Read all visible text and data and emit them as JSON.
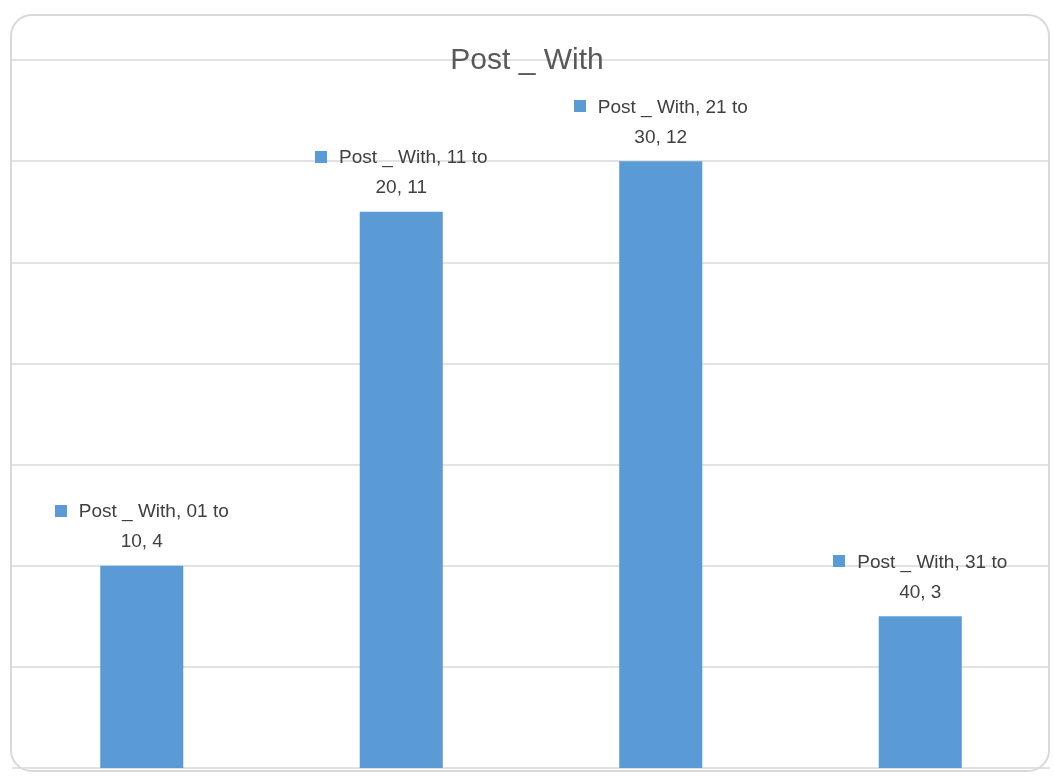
{
  "chart_data": {
    "type": "bar",
    "title": "Post _ With",
    "categories": [
      null,
      null,
      null,
      null
    ],
    "series": [
      {
        "color": "#5b9bd5",
        "values": [
          4,
          11,
          12,
          3
        ],
        "value_labels": [
          "Post _ With, 01 to 10, 4",
          "Post _ With, 11 to 20, 11",
          "Post _ With, 21 to 30, 12",
          "Post _ With, 31 to 40, 3"
        ]
      }
    ],
    "ylim": [
      0,
      14
    ],
    "yticks": [
      {
        "value": 0,
        "label": null
      },
      {
        "value": 2,
        "label": null
      },
      {
        "value": 4,
        "label": null
      },
      {
        "value": 6,
        "label": null
      },
      {
        "value": 8,
        "label": null
      },
      {
        "value": 10,
        "label": null
      },
      {
        "value": 12,
        "label": null
      },
      {
        "value": 14,
        "label": null
      }
    ],
    "grid": "y",
    "tick_labels": false
  }
}
